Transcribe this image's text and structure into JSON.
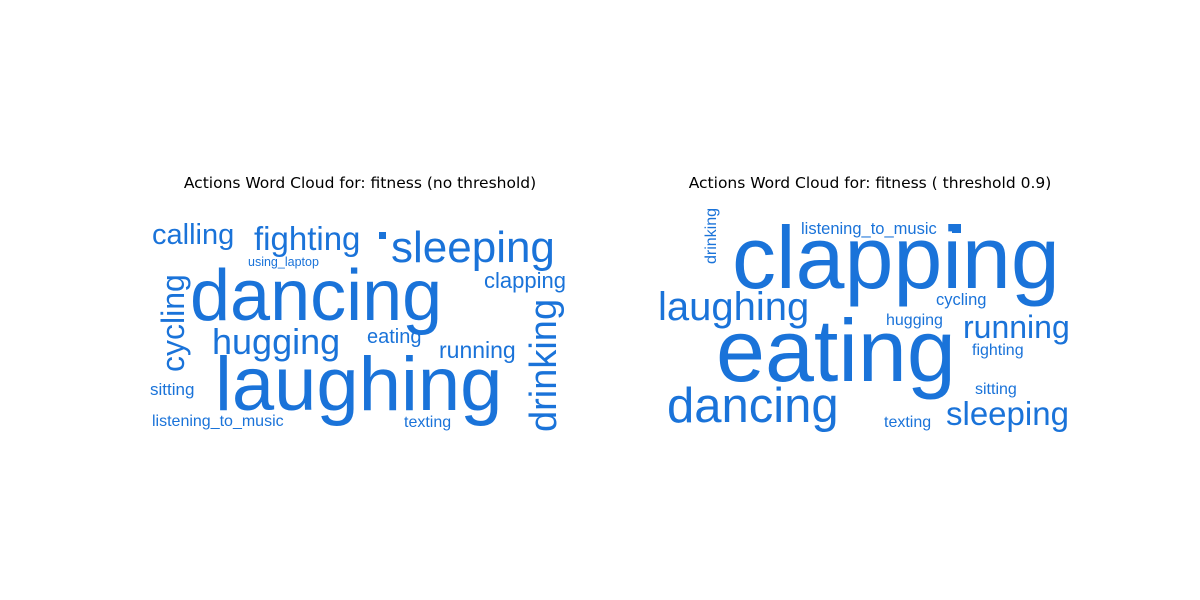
{
  "figure": {
    "panels": [
      {
        "title": "Actions Word Cloud for: fitness (no threshold)",
        "words": [
          {
            "text": "laughing"
          },
          {
            "text": "dancing"
          },
          {
            "text": "sleeping"
          },
          {
            "text": "fighting"
          },
          {
            "text": "calling"
          },
          {
            "text": "hugging"
          },
          {
            "text": "drinking"
          },
          {
            "text": "cycling"
          },
          {
            "text": "clapping"
          },
          {
            "text": "running"
          },
          {
            "text": "eating"
          },
          {
            "text": "sitting"
          },
          {
            "text": "listening_to_music"
          },
          {
            "text": "texting"
          },
          {
            "text": "using_laptop"
          }
        ]
      },
      {
        "title": "Actions Word Cloud for: fitness ( threshold 0.9)",
        "words": [
          {
            "text": "clapping"
          },
          {
            "text": "eating"
          },
          {
            "text": "dancing"
          },
          {
            "text": "laughing"
          },
          {
            "text": "running"
          },
          {
            "text": "sleeping"
          },
          {
            "text": "listening_to_music"
          },
          {
            "text": "drinking"
          },
          {
            "text": "cycling"
          },
          {
            "text": "hugging"
          },
          {
            "text": "fighting"
          },
          {
            "text": "sitting"
          },
          {
            "text": "texting"
          }
        ]
      }
    ]
  },
  "colors": {
    "word": "#1a73d9",
    "title": "#000000"
  }
}
